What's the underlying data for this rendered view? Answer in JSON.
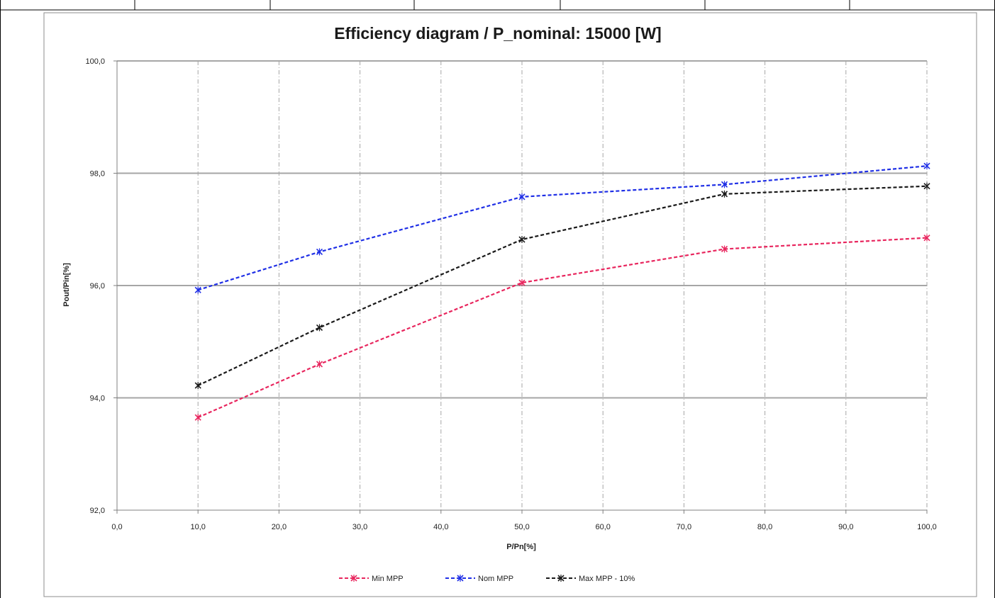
{
  "chart_data": {
    "type": "line",
    "title": "Efficiency diagram / P_nominal: 15000 [W]",
    "xlabel": "P/Pn[%]",
    "ylabel": "Pout/Pin[%]",
    "xlim": [
      0,
      100
    ],
    "ylim": [
      92,
      100
    ],
    "x_ticks": [
      "0,0",
      "10,0",
      "20,0",
      "30,0",
      "40,0",
      "50,0",
      "60,0",
      "70,0",
      "80,0",
      "90,0",
      "100,0"
    ],
    "y_ticks": [
      "92,0",
      "94,0",
      "96,0",
      "98,0",
      "100,0"
    ],
    "grid": true,
    "legend_position": "bottom",
    "series": [
      {
        "name": "Min MPP",
        "color": "#e8265e",
        "x": [
          10,
          25,
          50,
          75,
          100
        ],
        "y": [
          93.65,
          94.6,
          96.05,
          96.65,
          96.85
        ]
      },
      {
        "name": "Nom MPP",
        "color": "#1f2fe6",
        "x": [
          10,
          25,
          50,
          75,
          100
        ],
        "y": [
          95.92,
          96.6,
          97.58,
          97.8,
          98.13
        ]
      },
      {
        "name": "Max MPP - 10%",
        "color": "#1a1a1a",
        "x": [
          10,
          25,
          50,
          75,
          100
        ],
        "y": [
          94.22,
          95.25,
          96.82,
          97.63,
          97.77
        ]
      }
    ]
  }
}
